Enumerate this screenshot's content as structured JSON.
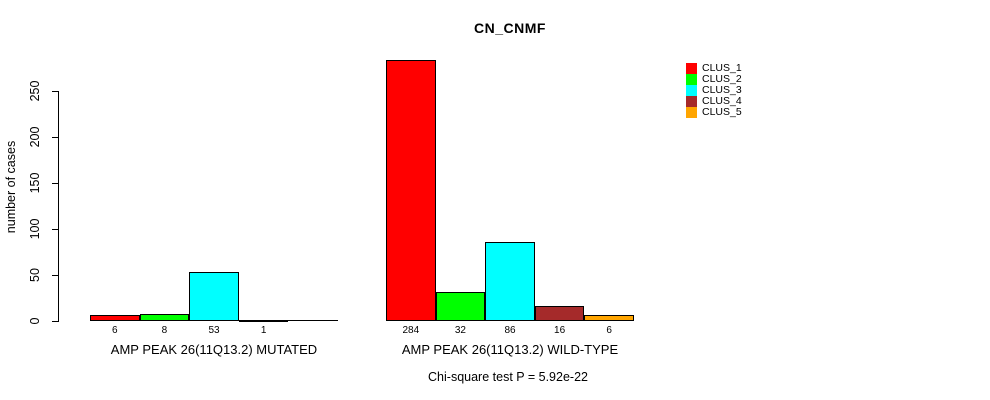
{
  "chart_data": {
    "type": "bar",
    "title": "CN_CNMF",
    "ylabel": "number of cases",
    "annotation": "Chi-square test P = 5.92e-22",
    "ylim": [
      0,
      290
    ],
    "yticks": [
      0,
      50,
      100,
      150,
      200,
      250
    ],
    "grid": false,
    "legend_position": "right",
    "background": "#ffffff",
    "groups": [
      {
        "label": "AMP PEAK 26(11Q13.2) MUTATED"
      },
      {
        "label": "AMP PEAK 26(11Q13.2) WILD-TYPE"
      }
    ],
    "series": [
      {
        "name": "CLUS_1",
        "color": "#FF0000",
        "values": [
          6,
          284
        ],
        "value_labels": [
          "6",
          "284"
        ]
      },
      {
        "name": "CLUS_2",
        "color": "#00FF00",
        "values": [
          8,
          32
        ],
        "value_labels": [
          "8",
          "32"
        ]
      },
      {
        "name": "CLUS_3",
        "color": "#00FFFF",
        "values": [
          53,
          86
        ],
        "value_labels": [
          "53",
          "86"
        ]
      },
      {
        "name": "CLUS_4",
        "color": "#A52A2A",
        "values": [
          1,
          16
        ],
        "value_labels": [
          "1",
          "16"
        ]
      },
      {
        "name": "CLUS_5",
        "color": "#FFA500",
        "values": [
          0,
          6
        ],
        "value_labels": [
          "",
          "6"
        ]
      }
    ]
  }
}
